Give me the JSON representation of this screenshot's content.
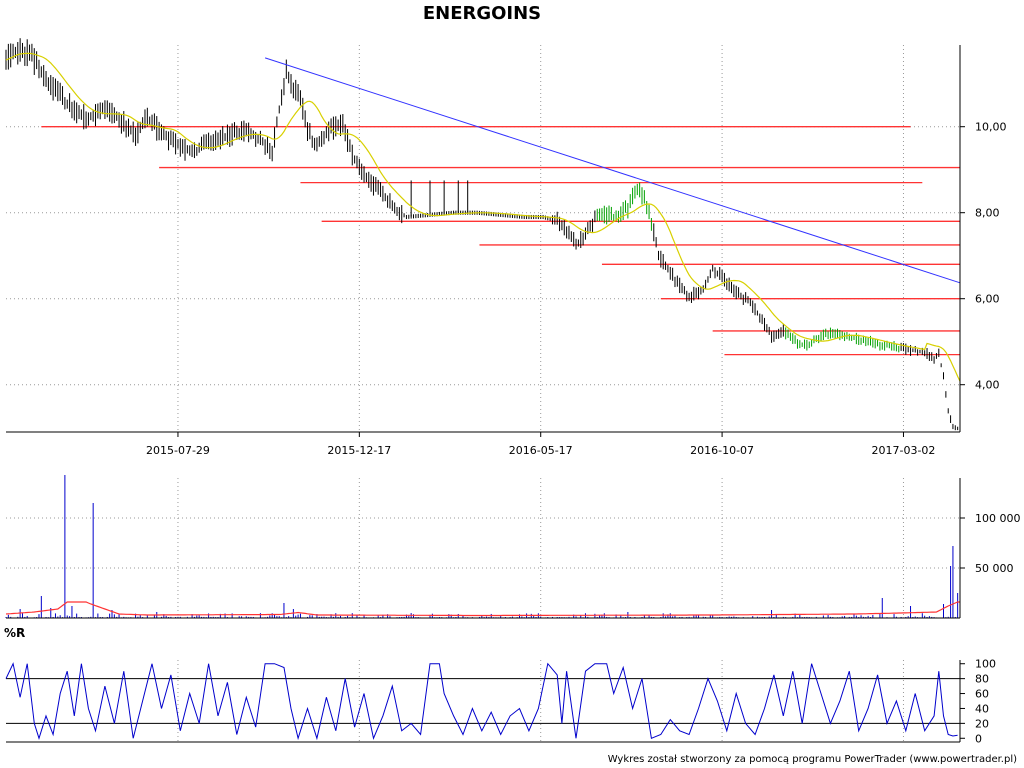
{
  "title": "ENERGOINS",
  "footer": "Wykres został stworzony za pomocą programu PowerTrader (www.powertrader.pl)",
  "colors": {
    "candle": "#000000",
    "candle_up": "#00a000",
    "ma": "#d8d000",
    "resistance": "#ff3333",
    "trendline": "#3333ff",
    "volume": "#0000cc",
    "volume_avg": "#ff3333",
    "williams": "#0000cc",
    "grid": "#999999"
  },
  "chart_data": [
    {
      "type": "line",
      "panel": "price",
      "title": "ENERGOINS",
      "x_tick_labels": [
        "2015-07-29",
        "2015-12-17",
        "2016-05-17",
        "2016-10-07",
        "2017-03-02"
      ],
      "y_tick_labels": [
        "4,00",
        "6,00",
        "8,00",
        "10,00"
      ],
      "y_ticks": [
        4,
        6,
        8,
        10
      ],
      "ylim": [
        2.9,
        11.9
      ],
      "xlim_sessions": [
        0,
        405
      ],
      "x_tick_sessions": [
        73,
        150,
        227,
        304,
        381
      ],
      "grid": true,
      "price_anchors": [
        [
          0,
          11.55
        ],
        [
          5,
          11.8
        ],
        [
          10,
          11.7
        ],
        [
          15,
          11.3
        ],
        [
          20,
          10.9
        ],
        [
          25,
          10.6
        ],
        [
          30,
          10.3
        ],
        [
          35,
          10.2
        ],
        [
          40,
          10.4
        ],
        [
          45,
          10.3
        ],
        [
          50,
          10.1
        ],
        [
          55,
          9.8
        ],
        [
          60,
          10.2
        ],
        [
          65,
          9.9
        ],
        [
          70,
          9.7
        ],
        [
          75,
          9.5
        ],
        [
          80,
          9.4
        ],
        [
          85,
          9.6
        ],
        [
          90,
          9.7
        ],
        [
          95,
          9.8
        ],
        [
          100,
          9.9
        ],
        [
          105,
          9.8
        ],
        [
          110,
          9.6
        ],
        [
          113,
          9.4
        ],
        [
          116,
          10.4
        ],
        [
          119,
          11.3
        ],
        [
          122,
          10.9
        ],
        [
          125,
          10.6
        ],
        [
          128,
          9.9
        ],
        [
          131,
          9.6
        ],
        [
          134,
          9.7
        ],
        [
          137,
          9.9
        ],
        [
          140,
          10.0
        ],
        [
          143,
          10.0
        ],
        [
          146,
          9.5
        ],
        [
          150,
          9.0
        ],
        [
          155,
          8.7
        ],
        [
          160,
          8.4
        ],
        [
          165,
          8.1
        ],
        [
          170,
          7.9
        ],
        [
          180,
          7.95
        ],
        [
          190,
          8.0
        ],
        [
          200,
          8.0
        ],
        [
          210,
          7.95
        ],
        [
          220,
          7.9
        ],
        [
          228,
          7.9
        ],
        [
          235,
          7.8
        ],
        [
          240,
          7.4
        ],
        [
          243,
          7.3
        ],
        [
          248,
          7.7
        ],
        [
          252,
          8.0
        ],
        [
          258,
          7.9
        ],
        [
          264,
          8.1
        ],
        [
          268,
          8.6
        ],
        [
          271,
          8.3
        ],
        [
          274,
          7.8
        ],
        [
          277,
          7.0
        ],
        [
          282,
          6.6
        ],
        [
          286,
          6.3
        ],
        [
          290,
          6.05
        ],
        [
          296,
          6.2
        ],
        [
          300,
          6.7
        ],
        [
          304,
          6.5
        ],
        [
          310,
          6.15
        ],
        [
          316,
          5.9
        ],
        [
          320,
          5.6
        ],
        [
          325,
          5.1
        ],
        [
          330,
          5.25
        ],
        [
          335,
          5.0
        ],
        [
          340,
          4.9
        ],
        [
          345,
          5.1
        ],
        [
          350,
          5.2
        ],
        [
          360,
          5.1
        ],
        [
          370,
          4.95
        ],
        [
          380,
          4.85
        ],
        [
          390,
          4.75
        ],
        [
          394,
          4.6
        ],
        [
          396,
          4.7
        ],
        [
          398,
          4.2
        ],
        [
          400,
          3.4
        ],
        [
          402,
          3.0
        ],
        [
          404,
          2.97
        ]
      ],
      "resistance_lines": [
        {
          "from": 15,
          "to": 384,
          "value": 10.0
        },
        {
          "from": 65,
          "to": 405,
          "value": 9.05
        },
        {
          "from": 125,
          "to": 389,
          "value": 8.7
        },
        {
          "from": 134,
          "to": 405,
          "value": 7.8
        },
        {
          "from": 201,
          "to": 405,
          "value": 7.25
        },
        {
          "from": 253,
          "to": 405,
          "value": 6.8
        },
        {
          "from": 278,
          "to": 405,
          "value": 6.0
        },
        {
          "from": 300,
          "to": 405,
          "value": 5.25
        },
        {
          "from": 305,
          "to": 405,
          "value": 4.7
        }
      ],
      "trendline": {
        "from": [
          110,
          11.6
        ],
        "to": [
          405,
          6.37
        ]
      }
    },
    {
      "type": "bar",
      "panel": "volume",
      "y_tick_labels": [
        "50 000",
        "100 000"
      ],
      "y_ticks": [
        50000,
        100000
      ],
      "ylim": [
        0,
        140000
      ],
      "spikes": [
        {
          "session": 6,
          "value": 9000
        },
        {
          "session": 15,
          "value": 22000
        },
        {
          "session": 19,
          "value": 10000
        },
        {
          "session": 25,
          "value": 143000
        },
        {
          "session": 28,
          "value": 12000
        },
        {
          "session": 37,
          "value": 115000
        },
        {
          "session": 45,
          "value": 8000
        },
        {
          "session": 64,
          "value": 6000
        },
        {
          "session": 118,
          "value": 15000
        },
        {
          "session": 122,
          "value": 9000
        },
        {
          "session": 264,
          "value": 6000
        },
        {
          "session": 325,
          "value": 8000
        },
        {
          "session": 372,
          "value": 20000
        },
        {
          "session": 384,
          "value": 12000
        },
        {
          "session": 398,
          "value": 14000
        },
        {
          "session": 401,
          "value": 52000
        },
        {
          "session": 402,
          "value": 72000
        },
        {
          "session": 404,
          "value": 25000
        }
      ],
      "avg_anchors": [
        [
          0,
          4000
        ],
        [
          12,
          6000
        ],
        [
          22,
          9000
        ],
        [
          26,
          16000
        ],
        [
          34,
          16000
        ],
        [
          36,
          14000
        ],
        [
          42,
          9000
        ],
        [
          48,
          4000
        ],
        [
          60,
          3000
        ],
        [
          116,
          3500
        ],
        [
          124,
          5500
        ],
        [
          132,
          3000
        ],
        [
          200,
          2500
        ],
        [
          300,
          3000
        ],
        [
          360,
          4000
        ],
        [
          380,
          5000
        ],
        [
          395,
          6000
        ],
        [
          400,
          12000
        ],
        [
          404,
          16000
        ]
      ]
    },
    {
      "type": "line",
      "panel": "williams",
      "label": "%R",
      "y_tick_labels": [
        "0",
        "20",
        "40",
        "60",
        "80",
        "100"
      ],
      "y_ticks": [
        0,
        20,
        40,
        60,
        80,
        100
      ],
      "ylim": [
        -5,
        105
      ],
      "reference_lines": [
        20,
        80
      ],
      "anchors": [
        [
          0,
          80
        ],
        [
          3,
          100
        ],
        [
          6,
          55
        ],
        [
          9,
          100
        ],
        [
          12,
          20
        ],
        [
          14,
          0
        ],
        [
          17,
          30
        ],
        [
          20,
          5
        ],
        [
          23,
          60
        ],
        [
          26,
          90
        ],
        [
          29,
          30
        ],
        [
          32,
          100
        ],
        [
          35,
          40
        ],
        [
          38,
          10
        ],
        [
          42,
          70
        ],
        [
          46,
          20
        ],
        [
          50,
          90
        ],
        [
          54,
          0
        ],
        [
          58,
          50
        ],
        [
          62,
          100
        ],
        [
          66,
          40
        ],
        [
          70,
          85
        ],
        [
          74,
          10
        ],
        [
          78,
          60
        ],
        [
          82,
          20
        ],
        [
          86,
          100
        ],
        [
          90,
          30
        ],
        [
          94,
          75
        ],
        [
          98,
          5
        ],
        [
          102,
          55
        ],
        [
          106,
          15
        ],
        [
          110,
          100
        ],
        [
          114,
          100
        ],
        [
          118,
          95
        ],
        [
          121,
          40
        ],
        [
          124,
          0
        ],
        [
          128,
          40
        ],
        [
          132,
          0
        ],
        [
          136,
          55
        ],
        [
          140,
          10
        ],
        [
          144,
          80
        ],
        [
          148,
          15
        ],
        [
          152,
          60
        ],
        [
          156,
          0
        ],
        [
          160,
          30
        ],
        [
          164,
          70
        ],
        [
          168,
          10
        ],
        [
          172,
          20
        ],
        [
          176,
          5
        ],
        [
          180,
          100
        ],
        [
          184,
          100
        ],
        [
          186,
          60
        ],
        [
          190,
          30
        ],
        [
          194,
          5
        ],
        [
          198,
          40
        ],
        [
          202,
          10
        ],
        [
          206,
          35
        ],
        [
          210,
          5
        ],
        [
          214,
          30
        ],
        [
          218,
          40
        ],
        [
          222,
          10
        ],
        [
          226,
          40
        ],
        [
          230,
          100
        ],
        [
          234,
          85
        ],
        [
          236,
          20
        ],
        [
          238,
          90
        ],
        [
          242,
          0
        ],
        [
          246,
          90
        ],
        [
          250,
          100
        ],
        [
          255,
          100
        ],
        [
          258,
          60
        ],
        [
          262,
          95
        ],
        [
          266,
          40
        ],
        [
          270,
          80
        ],
        [
          274,
          0
        ],
        [
          278,
          5
        ],
        [
          282,
          25
        ],
        [
          286,
          10
        ],
        [
          290,
          5
        ],
        [
          294,
          40
        ],
        [
          298,
          80
        ],
        [
          302,
          50
        ],
        [
          306,
          10
        ],
        [
          310,
          60
        ],
        [
          314,
          20
        ],
        [
          318,
          5
        ],
        [
          322,
          40
        ],
        [
          326,
          85
        ],
        [
          330,
          30
        ],
        [
          334,
          90
        ],
        [
          338,
          20
        ],
        [
          342,
          100
        ],
        [
          346,
          60
        ],
        [
          350,
          20
        ],
        [
          354,
          50
        ],
        [
          358,
          90
        ],
        [
          362,
          10
        ],
        [
          366,
          40
        ],
        [
          370,
          85
        ],
        [
          374,
          20
        ],
        [
          378,
          50
        ],
        [
          382,
          10
        ],
        [
          386,
          60
        ],
        [
          390,
          10
        ],
        [
          394,
          30
        ],
        [
          396,
          90
        ],
        [
          398,
          30
        ],
        [
          400,
          5
        ],
        [
          402,
          3
        ],
        [
          404,
          4
        ]
      ]
    }
  ]
}
